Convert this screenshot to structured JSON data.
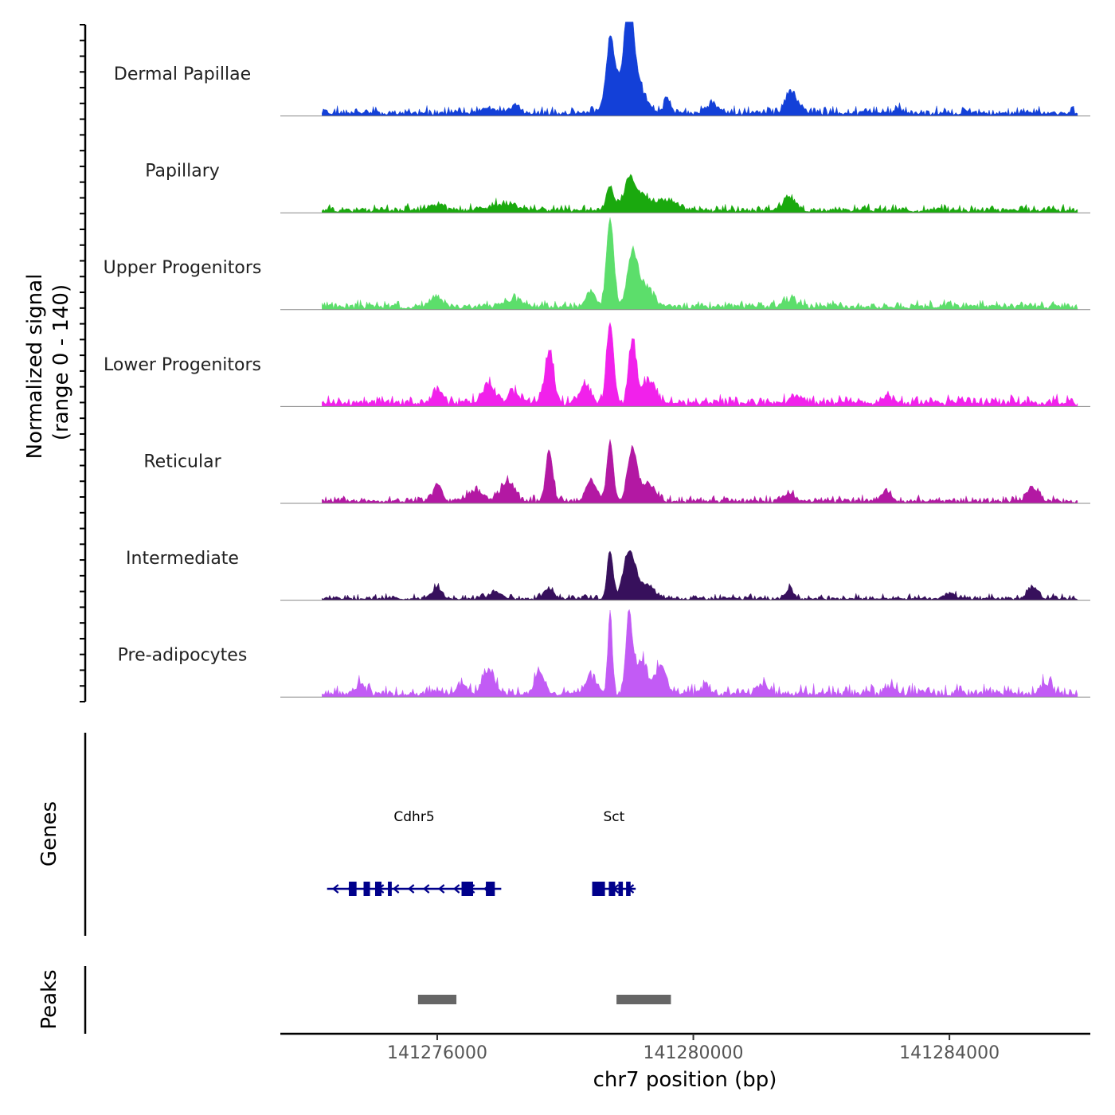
{
  "chart_data": {
    "type": "area",
    "title": "",
    "ylabel_line1": "Normalized signal",
    "ylabel_line2": "(range 0 - 140)",
    "xlabel": "chr7 position (bp)",
    "chromosome": "chr7",
    "signal_range": [
      0,
      140
    ],
    "xlim": [
      141273550,
      141286200
    ],
    "region": [
      141274200,
      141286000
    ],
    "xticks": [
      {
        "value": 141276000,
        "label": "141276000"
      },
      {
        "value": 141280000,
        "label": "141280000"
      },
      {
        "value": 141284000,
        "label": "141284000"
      }
    ],
    "series": [
      {
        "name": "Dermal Papillae",
        "color": "#1340D8",
        "baseline": 5,
        "noise": 3.5,
        "peaks": [
          [
            141278700,
            90,
            60
          ],
          [
            141278900,
            40,
            180
          ],
          [
            141279000,
            110,
            55
          ],
          [
            141279050,
            50,
            140
          ],
          [
            141279600,
            18,
            60
          ],
          [
            141280300,
            12,
            90
          ],
          [
            141281500,
            22,
            70
          ],
          [
            141281600,
            15,
            110
          ],
          [
            141277200,
            10,
            80
          ],
          [
            141276800,
            8,
            120
          ],
          [
            141283200,
            8,
            60
          ]
        ]
      },
      {
        "name": "Papillary",
        "color": "#1AA90E",
        "baseline": 5,
        "noise": 3,
        "peaks": [
          [
            141278700,
            35,
            60
          ],
          [
            141279000,
            40,
            80
          ],
          [
            141279200,
            20,
            160
          ],
          [
            141279600,
            15,
            120
          ],
          [
            141281500,
            16,
            110
          ],
          [
            141277000,
            8,
            200
          ],
          [
            141276000,
            7,
            100
          ]
        ]
      },
      {
        "name": "Upper Progenitors",
        "color": "#5CDE6B",
        "baseline": 6,
        "noise": 3,
        "peaks": [
          [
            141278700,
            130,
            55
          ],
          [
            141279050,
            80,
            75
          ],
          [
            141279250,
            30,
            110
          ],
          [
            141278400,
            20,
            70
          ],
          [
            141276000,
            12,
            100
          ],
          [
            141277200,
            10,
            150
          ],
          [
            141281500,
            10,
            100
          ]
        ]
      },
      {
        "name": "Lower Progenitors",
        "color": "#F121EB",
        "baseline": 7,
        "noise": 4,
        "peaks": [
          [
            141278700,
            120,
            55
          ],
          [
            141279050,
            95,
            55
          ],
          [
            141279300,
            30,
            110
          ],
          [
            141277750,
            75,
            70
          ],
          [
            141278300,
            25,
            80
          ],
          [
            141276000,
            20,
            70
          ],
          [
            141276800,
            28,
            90
          ],
          [
            141277200,
            15,
            90
          ],
          [
            141281600,
            12,
            80
          ],
          [
            141283000,
            10,
            80
          ]
        ]
      },
      {
        "name": "Reticular",
        "color": "#B318A3",
        "baseline": 4,
        "noise": 3,
        "peaks": [
          [
            141278700,
            90,
            50
          ],
          [
            141279050,
            78,
            75
          ],
          [
            141279300,
            25,
            100
          ],
          [
            141277750,
            75,
            55
          ],
          [
            141278400,
            30,
            80
          ],
          [
            141276000,
            25,
            60
          ],
          [
            141277100,
            30,
            100
          ],
          [
            141276600,
            15,
            120
          ],
          [
            141283000,
            15,
            70
          ],
          [
            141285300,
            20,
            90
          ],
          [
            141281500,
            10,
            100
          ]
        ]
      },
      {
        "name": "Intermediate",
        "color": "#37105C",
        "baseline": 3,
        "noise": 2.5,
        "peaks": [
          [
            141278700,
            70,
            45
          ],
          [
            141279000,
            68,
            90
          ],
          [
            141279250,
            20,
            130
          ],
          [
            141277750,
            15,
            70
          ],
          [
            141276000,
            18,
            60
          ],
          [
            141276900,
            10,
            90
          ],
          [
            141281500,
            15,
            60
          ],
          [
            141285300,
            15,
            80
          ],
          [
            141284000,
            8,
            80
          ]
        ]
      },
      {
        "name": "Pre-adipocytes",
        "color": "#C25BF5",
        "baseline": 6,
        "noise": 5,
        "peaks": [
          [
            141278700,
            120,
            35
          ],
          [
            141279000,
            115,
            55
          ],
          [
            141279200,
            50,
            80
          ],
          [
            141279500,
            45,
            80
          ],
          [
            141276800,
            35,
            90
          ],
          [
            141277600,
            30,
            80
          ],
          [
            141278400,
            22,
            100
          ],
          [
            141274800,
            15,
            70
          ],
          [
            141276400,
            15,
            80
          ],
          [
            141280200,
            14,
            60
          ],
          [
            141281100,
            12,
            80
          ],
          [
            141283100,
            12,
            60
          ],
          [
            141285500,
            16,
            80
          ]
        ]
      }
    ],
    "genes": [
      {
        "name": "Cdhr5",
        "start": 141274280,
        "end": 141277000,
        "strand": "-",
        "exons": [
          [
            141274620,
            141274740
          ],
          [
            141274850,
            141274950
          ],
          [
            141275030,
            141275130
          ],
          [
            141275230,
            141275290
          ],
          [
            141276380,
            141276560
          ],
          [
            141276760,
            141276900
          ]
        ]
      },
      {
        "name": "Sct",
        "start": 141278420,
        "end": 141279100,
        "strand": "-",
        "exons": [
          [
            141278420,
            141278620
          ],
          [
            141278680,
            141278780
          ],
          [
            141278830,
            141278900
          ],
          [
            141278950,
            141279020
          ]
        ]
      }
    ],
    "peaks": [
      {
        "start": 141275700,
        "end": 141276300
      },
      {
        "start": 141278800,
        "end": 141279650
      }
    ],
    "track_labels": {
      "genes": "Genes",
      "peaks": "Peaks"
    }
  }
}
